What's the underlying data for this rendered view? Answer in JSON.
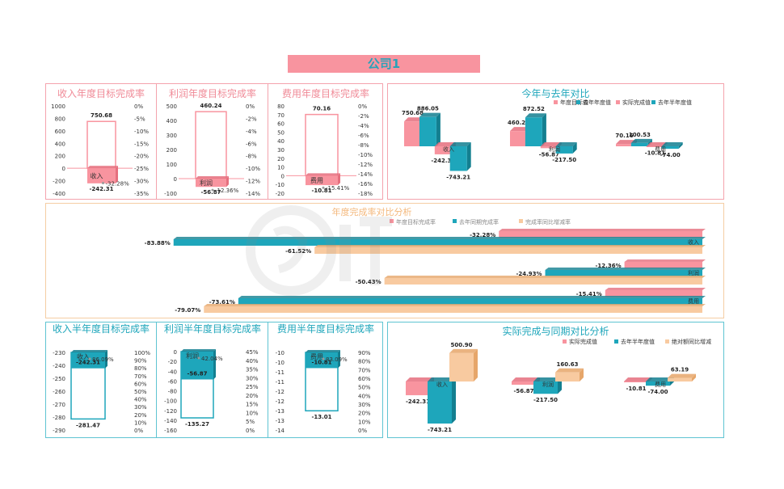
{
  "page_title": "公司1",
  "colors": {
    "pink": "#f8949f",
    "pink_dark": "#e56f7e",
    "teal": "#1ea6bb",
    "teal_dark": "#137f90",
    "orange": "#f8caa0",
    "orange_dark": "#e6a66a",
    "title_pink": "#f08a97",
    "title_teal": "#1ea6bb"
  },
  "chart_data": [
    {
      "id": "rev_annual",
      "type": "bar",
      "title": "收入年度目标完成率",
      "category": "收入",
      "target_value": 750.68,
      "actual_value": -242.31,
      "rate_label": "-32.28%",
      "y_ticks": [
        "1000",
        "800",
        "600",
        "400",
        "200",
        "0",
        "-200",
        "-400"
      ],
      "ylim": [
        -400,
        1000
      ],
      "y2_ticks": [
        "0%",
        "-5%",
        "-10%",
        "-15%",
        "-20%",
        "-25%",
        "-30%",
        "-35%"
      ]
    },
    {
      "id": "profit_annual",
      "type": "bar",
      "title": "利润年度目标完成率",
      "category": "利润",
      "target_value": 460.24,
      "actual_value": -56.87,
      "rate_label": "-12.36%",
      "y_ticks": [
        "500",
        "400",
        "300",
        "200",
        "100",
        "0",
        "-100"
      ],
      "ylim": [
        -100,
        500
      ],
      "y2_ticks": [
        "0%",
        "-2%",
        "-4%",
        "-6%",
        "-8%",
        "-10%",
        "-12%",
        "-14%"
      ]
    },
    {
      "id": "cost_annual",
      "type": "bar",
      "title": "费用年度目标完成率",
      "category": "费用",
      "target_value": 70.16,
      "actual_value": -10.81,
      "rate_label": "-15.41%",
      "y_ticks": [
        "80",
        "70",
        "60",
        "50",
        "40",
        "30",
        "20",
        "10",
        "0",
        "-10",
        "-20"
      ],
      "ylim": [
        -20,
        80
      ],
      "y2_ticks": [
        "0%",
        "-2%",
        "-4%",
        "-6%",
        "-8%",
        "-10%",
        "-12%",
        "-14%",
        "-16%",
        "-18%"
      ]
    },
    {
      "id": "yoy_compare",
      "type": "bar",
      "title": "今年与去年对比",
      "legend": [
        "年度目标值",
        "去年年度值",
        "实际完成值",
        "去年半年度值"
      ],
      "categories": [
        "收入",
        "利润",
        "费用"
      ],
      "series": [
        {
          "name": "年度目标值",
          "values": [
            750.68,
            460.24,
            70.16
          ]
        },
        {
          "name": "去年年度值",
          "values": [
            886.05,
            872.52,
            100.53
          ]
        },
        {
          "name": "实际完成值",
          "values": [
            -242.31,
            -56.87,
            -10.81
          ]
        },
        {
          "name": "去年半年度值",
          "values": [
            -743.21,
            -217.5,
            -74.0
          ]
        }
      ]
    },
    {
      "id": "rate_analysis",
      "type": "bar",
      "orientation": "horizontal",
      "title": "年度完成率对比分析",
      "legend": [
        "年度目标完成率",
        "去年同期完成率",
        "完成率同比增减率"
      ],
      "categories": [
        "收入",
        "利润",
        "费用"
      ],
      "series": [
        {
          "name": "年度目标完成率",
          "values": [
            -32.28,
            -12.36,
            -15.41
          ],
          "labels": [
            "-32.28%",
            "-12.36%",
            "-15.41%"
          ]
        },
        {
          "name": "去年同期完成率",
          "values": [
            -83.88,
            -24.93,
            -73.61
          ],
          "labels": [
            "-83.88%",
            "-24.93%",
            "-73.61%"
          ]
        },
        {
          "name": "完成率同比增减率",
          "values": [
            -61.52,
            -50.43,
            -79.07
          ],
          "labels": [
            "-61.52%",
            "-50.43%",
            "-79.07%"
          ]
        }
      ]
    },
    {
      "id": "rev_half",
      "type": "bar",
      "title": "收入半年度目标完成率",
      "category": "收入",
      "target_value": -281.47,
      "actual_value": -242.31,
      "rate_label": "86.09%",
      "y_ticks": [
        "-230",
        "-240",
        "-250",
        "-260",
        "-270",
        "-280",
        "-290"
      ],
      "ylim": [
        -290,
        -230
      ],
      "y2_ticks": [
        "100%",
        "90%",
        "80%",
        "70%",
        "60%",
        "50%",
        "40%",
        "30%",
        "20%",
        "10%",
        "0%"
      ]
    },
    {
      "id": "profit_half",
      "type": "bar",
      "title": "利润半年度目标完成率",
      "category": "利润",
      "target_value": -135.27,
      "actual_value": -56.87,
      "rate_label": "42.04%",
      "y_ticks": [
        "0",
        "-20",
        "-40",
        "-60",
        "-80",
        "-100",
        "-120",
        "-140",
        "-160"
      ],
      "ylim": [
        -160,
        0
      ],
      "y2_ticks": [
        "45%",
        "40%",
        "35%",
        "30%",
        "25%",
        "20%",
        "15%",
        "10%",
        "5%",
        "0%"
      ]
    },
    {
      "id": "cost_half",
      "type": "bar",
      "title": "费用半年度目标完成率",
      "category": "费用",
      "target_value": -13.01,
      "actual_value": -10.81,
      "rate_label": "83.09%",
      "y_ticks": [
        "-10",
        "-10",
        "-11",
        "-11",
        "-12",
        "-12",
        "-13",
        "-13",
        "-14"
      ],
      "ylim": [
        -14,
        -10
      ],
      "y2_ticks": [
        "90%",
        "80%",
        "70%",
        "60%",
        "50%",
        "40%",
        "30%",
        "20%",
        "10%",
        "0%"
      ]
    },
    {
      "id": "actual_vs_last",
      "type": "bar",
      "title": "实际完成与同期对比分析",
      "legend": [
        "实际完成值",
        "去年半年度值",
        "绝对额同比增减"
      ],
      "categories": [
        "收入",
        "利润",
        "费用"
      ],
      "series": [
        {
          "name": "实际完成值",
          "values": [
            -242.31,
            -56.87,
            -10.81
          ]
        },
        {
          "name": "去年半年度值",
          "values": [
            -743.21,
            -217.5,
            -74.0
          ]
        },
        {
          "name": "绝对额同比增减",
          "values": [
            500.9,
            160.63,
            63.19
          ]
        }
      ]
    }
  ]
}
